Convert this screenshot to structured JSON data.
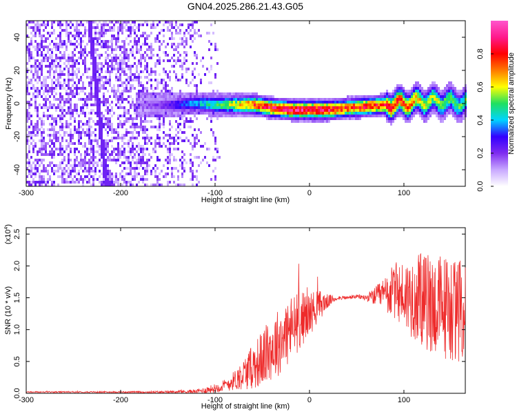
{
  "title": "GN04.2025.286.21.43.G05",
  "colors": {
    "snr_line": "#ee2b2b",
    "axis": "#000000",
    "background": "#ffffff"
  },
  "chart_data": [
    {
      "type": "heatmap",
      "xlabel": "Height of straight line (km)",
      "ylabel": "Frequency (Hz)",
      "xlim": [
        -300,
        165
      ],
      "ylim": [
        -50,
        50
      ],
      "x_ticks": [
        "-300",
        "-200",
        "-100",
        "0",
        "100"
      ],
      "y_ticks": [
        "-40",
        "-20",
        "0",
        "20",
        "40"
      ],
      "colorbar": {
        "label": "Normalized spectral amplitude",
        "range": [
          0,
          1
        ],
        "ticks": [
          "0.0",
          "0.2",
          "0.4",
          "0.6",
          "0.8"
        ],
        "colormap": [
          "#ffffff",
          "#c8a8ff",
          "#7f2cf0",
          "#3300ff",
          "#00d4ff",
          "#20e060",
          "#ffff00",
          "#ff7a00",
          "#ff0000",
          "#ff1a8c",
          "#ff55cc"
        ]
      },
      "grid": false,
      "description_points": {
        "ridge_x": [
          -180,
          -160,
          -140,
          -120,
          -100,
          -80,
          -60,
          -40,
          -20,
          0,
          20,
          40,
          60,
          80,
          100,
          120,
          140,
          160
        ],
        "ridge_y": [
          0,
          0,
          0,
          1,
          0,
          0,
          0,
          -2,
          -3,
          -3,
          -3,
          -2,
          -1,
          0,
          1,
          2,
          2,
          1
        ],
        "ridge_amplitude": [
          0.15,
          0.2,
          0.3,
          0.4,
          0.5,
          0.6,
          0.75,
          0.85,
          0.9,
          0.9,
          0.85,
          0.75,
          0.8,
          0.8,
          0.75,
          0.6,
          0.55,
          0.5
        ]
      }
    },
    {
      "type": "line",
      "xlabel": "Height of straight line (km)",
      "ylabel": "SNR (10 * v/v)",
      "y_scale_label": "(x10",
      "y_scale_exp": "4",
      "y_scale_suffix": ")",
      "xlim": [
        -300,
        165
      ],
      "ylim": [
        0,
        2.6
      ],
      "x_ticks": [
        "-300",
        "-200",
        "-100",
        "0",
        "100"
      ],
      "y_ticks": [
        "0.0",
        "0.5",
        "1.0",
        "1.5",
        "2.0",
        "2.5"
      ],
      "grid": false,
      "series": [
        {
          "x": [
            -300,
            -250,
            -200,
            -150,
            -120,
            -110,
            -100,
            -90,
            -80,
            -70,
            -60,
            -50,
            -40,
            -30,
            -20,
            -10,
            0,
            10,
            20,
            30,
            40,
            50,
            60,
            70,
            80,
            90,
            100,
            110,
            120,
            130,
            140,
            150,
            160
          ],
          "y": [
            0.02,
            0.02,
            0.02,
            0.02,
            0.03,
            0.05,
            0.08,
            0.12,
            0.2,
            0.3,
            0.42,
            0.55,
            0.7,
            0.85,
            1.0,
            1.15,
            1.25,
            1.38,
            1.45,
            1.5,
            1.5,
            1.52,
            1.5,
            1.52,
            1.55,
            1.6,
            1.55,
            1.5,
            1.45,
            1.4,
            1.35,
            1.35,
            1.3
          ],
          "spread": [
            0.01,
            0.01,
            0.01,
            0.02,
            0.03,
            0.05,
            0.07,
            0.1,
            0.15,
            0.25,
            0.35,
            0.45,
            0.5,
            0.55,
            0.55,
            0.45,
            0.35,
            0.25,
            0.1,
            0.03,
            0.03,
            0.03,
            0.05,
            0.15,
            0.3,
            0.45,
            0.55,
            0.65,
            0.75,
            0.8,
            0.85,
            0.85,
            0.8
          ]
        }
      ]
    }
  ]
}
